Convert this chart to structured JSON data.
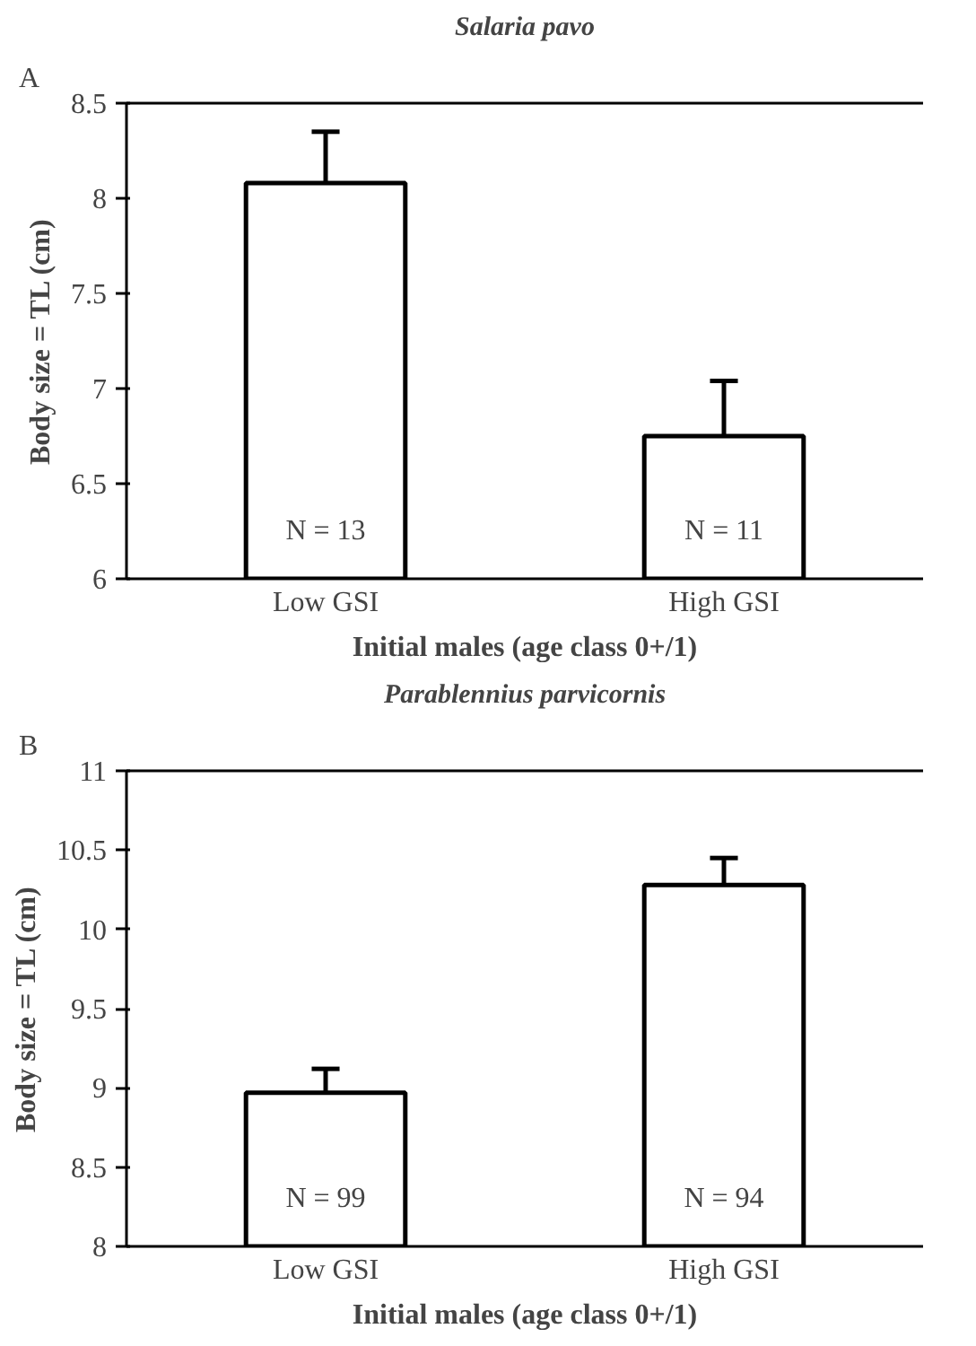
{
  "chart_data": [
    {
      "type": "bar",
      "title": "Salaria pavo",
      "xlabel": "Initial males (age class 0+/1)",
      "ylabel": "Body size = TL (cm)",
      "categories": [
        "Low GSI",
        "High GSI"
      ],
      "values": [
        8.08,
        6.75
      ],
      "color": "#ffffff",
      "errors": [
        [
          8.08,
          8.35
        ],
        [
          6.75,
          7.04
        ]
      ],
      "ylim": [
        6,
        8.5
      ],
      "yticks": [
        6,
        6.5,
        7,
        7.5,
        8,
        8.5
      ],
      "grid": false,
      "annotations": [
        "A",
        "N = 13",
        "N = 11"
      ]
    },
    {
      "type": "bar",
      "title": "Parablennius parvicornis",
      "xlabel": "Initial males (age class 0+/1)",
      "ylabel": "Body size = TL (cm)",
      "categories": [
        "Low GSI",
        "High GSI"
      ],
      "values": [
        8.97,
        10.28
      ],
      "color": "#ffffff",
      "errors": [
        [
          8.97,
          9.12
        ],
        [
          10.28,
          10.45
        ]
      ],
      "ylim": [
        8,
        11
      ],
      "yticks": [
        8,
        8.5,
        9,
        9.5,
        10,
        10.5,
        11
      ],
      "grid": false,
      "annotations": [
        "B",
        "N = 99",
        "N = 94"
      ]
    }
  ]
}
